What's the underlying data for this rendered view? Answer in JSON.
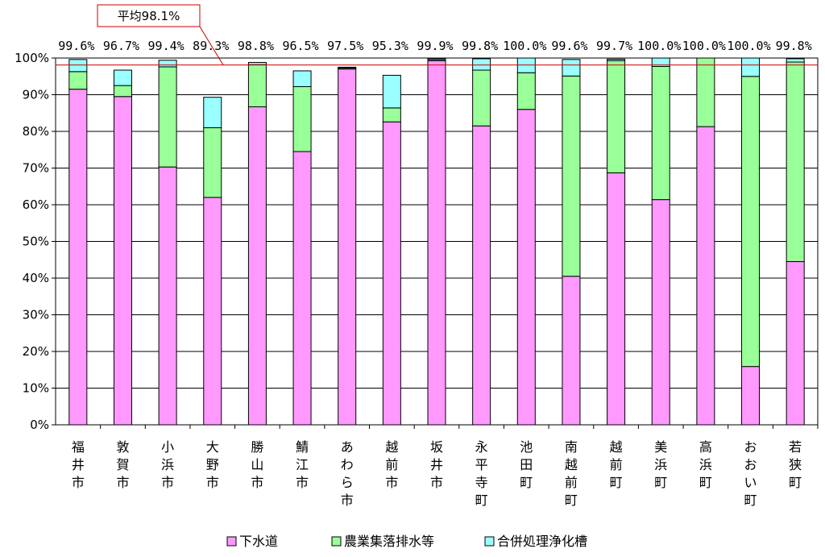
{
  "chart_data": {
    "type": "bar",
    "stacked": true,
    "ylim": [
      0,
      100
    ],
    "yticks": [
      "0%",
      "10%",
      "20%",
      "30%",
      "40%",
      "50%",
      "60%",
      "70%",
      "80%",
      "90%",
      "100%"
    ],
    "grid": true,
    "legend_position": "bottom",
    "categories": [
      "福井市",
      "敦賀市",
      "小浜市",
      "大野市",
      "勝山市",
      "鯖江市",
      "あわら市",
      "越前市",
      "坂井市",
      "永平寺町",
      "池田町",
      "南越前町",
      "越前町",
      "美浜町",
      "高浜町",
      "おおい町",
      "若狭町"
    ],
    "series": [
      {
        "name": "下水道",
        "color": "#ff99ff",
        "values": [
          91.5,
          89.5,
          70.3,
          62.0,
          86.7,
          74.5,
          97.0,
          82.6,
          99.3,
          81.5,
          86.0,
          40.5,
          68.7,
          61.4,
          81.3,
          15.9,
          44.5
        ]
      },
      {
        "name": "農業集落排水等",
        "color": "#99ff99",
        "values": [
          4.8,
          3.0,
          27.3,
          19.0,
          11.5,
          17.7,
          0.3,
          3.8,
          0.3,
          15.2,
          10.0,
          54.6,
          30.6,
          36.3,
          18.7,
          79.1,
          54.4
        ]
      },
      {
        "name": "合併処理浄化槽",
        "color": "#99ffff",
        "values": [
          3.3,
          4.2,
          1.8,
          8.3,
          0.6,
          4.3,
          0.2,
          8.9,
          0.3,
          3.1,
          4.0,
          4.5,
          0.4,
          2.3,
          0.0,
          5.0,
          0.9
        ]
      }
    ],
    "totals": [
      "99.6%",
      "96.7%",
      "99.4%",
      "89.3%",
      "98.8%",
      "96.5%",
      "97.5%",
      "95.3%",
      "99.9%",
      "99.8%",
      "100.0%",
      "99.6%",
      "99.7%",
      "100.0%",
      "100.0%",
      "100.0%",
      "99.8%"
    ],
    "average": {
      "label": "平均98.1%",
      "value": 98.1,
      "color": "#cc0000"
    }
  }
}
